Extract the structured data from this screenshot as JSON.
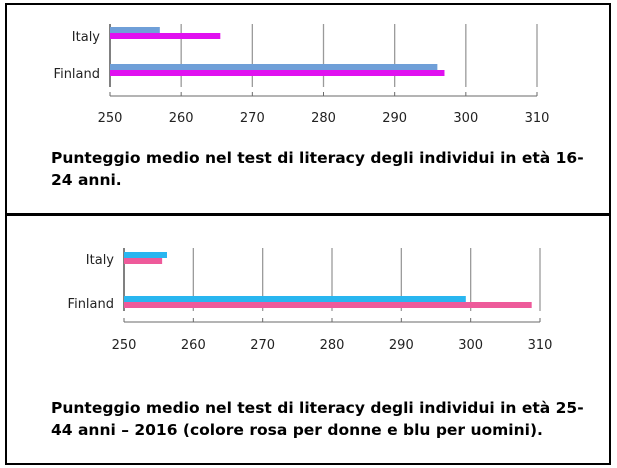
{
  "chart_data": [
    {
      "type": "bar",
      "orientation": "horizontal",
      "categories": [
        "Italy",
        "Finland"
      ],
      "series": [
        {
          "color": "#6f9fd8",
          "values": [
            257,
            296
          ]
        },
        {
          "color": "#e010f0",
          "values": [
            265.5,
            297
          ]
        }
      ],
      "xlim": [
        250,
        310
      ],
      "xticks": [
        250,
        260,
        270,
        280,
        290,
        300,
        310
      ],
      "grid": true,
      "caption": "Punteggio medio nel test di literacy degli individui in età 16-24 anni."
    },
    {
      "type": "bar",
      "orientation": "horizontal",
      "categories": [
        "Italy",
        "Finland"
      ],
      "series": [
        {
          "color": "#29b6f0",
          "values": [
            256.2,
            299.3
          ]
        },
        {
          "color": "#ee5a9a",
          "values": [
            255.5,
            308.8
          ]
        }
      ],
      "xlim": [
        250,
        310
      ],
      "xticks": [
        250,
        260,
        270,
        280,
        290,
        300,
        310
      ],
      "grid": true,
      "caption": "Punteggio medio nel test di literacy degli individui in età 25-44 anni – 2016 (colore rosa per donne e blu per uomini)."
    }
  ]
}
